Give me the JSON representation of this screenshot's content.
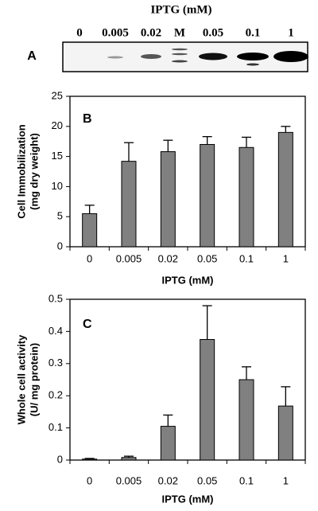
{
  "gel": {
    "title": "IPTG (mM)",
    "label": "A",
    "lanes": [
      "0",
      "0.005",
      "0.02",
      "M",
      "0.05",
      "0.1",
      "1"
    ]
  },
  "chart_data": [
    {
      "type": "bar",
      "panel": "B",
      "categories": [
        "0",
        "0.005",
        "0.02",
        "0.05",
        "0.1",
        "1"
      ],
      "values": [
        5.5,
        14.2,
        15.8,
        17,
        16.5,
        19
      ],
      "errors": [
        1.4,
        3.1,
        1.9,
        1.3,
        1.7,
        1.0
      ],
      "color": "#808080",
      "ylim": [
        0,
        25
      ],
      "yticks": [
        0,
        5,
        10,
        15,
        20,
        25
      ],
      "xlabel": "IPTG (mM)",
      "ylabel": [
        "Cell Immobilization",
        "(mg dry weight)"
      ]
    },
    {
      "type": "bar",
      "panel": "C",
      "categories": [
        "0",
        "0.005",
        "0.02",
        "0.05",
        "0.1",
        "1"
      ],
      "values": [
        0.003,
        0.008,
        0.105,
        0.375,
        0.25,
        0.168
      ],
      "errors": [
        0.002,
        0.004,
        0.035,
        0.105,
        0.04,
        0.06
      ],
      "color": "#808080",
      "ylim": [
        0,
        0.5
      ],
      "yticks": [
        0,
        0.1,
        0.2,
        0.3,
        0.4,
        0.5
      ],
      "xlabel": "IPTG (mM)",
      "ylabel": [
        "Whole cell activity",
        "(U/ mg protein)"
      ]
    }
  ]
}
